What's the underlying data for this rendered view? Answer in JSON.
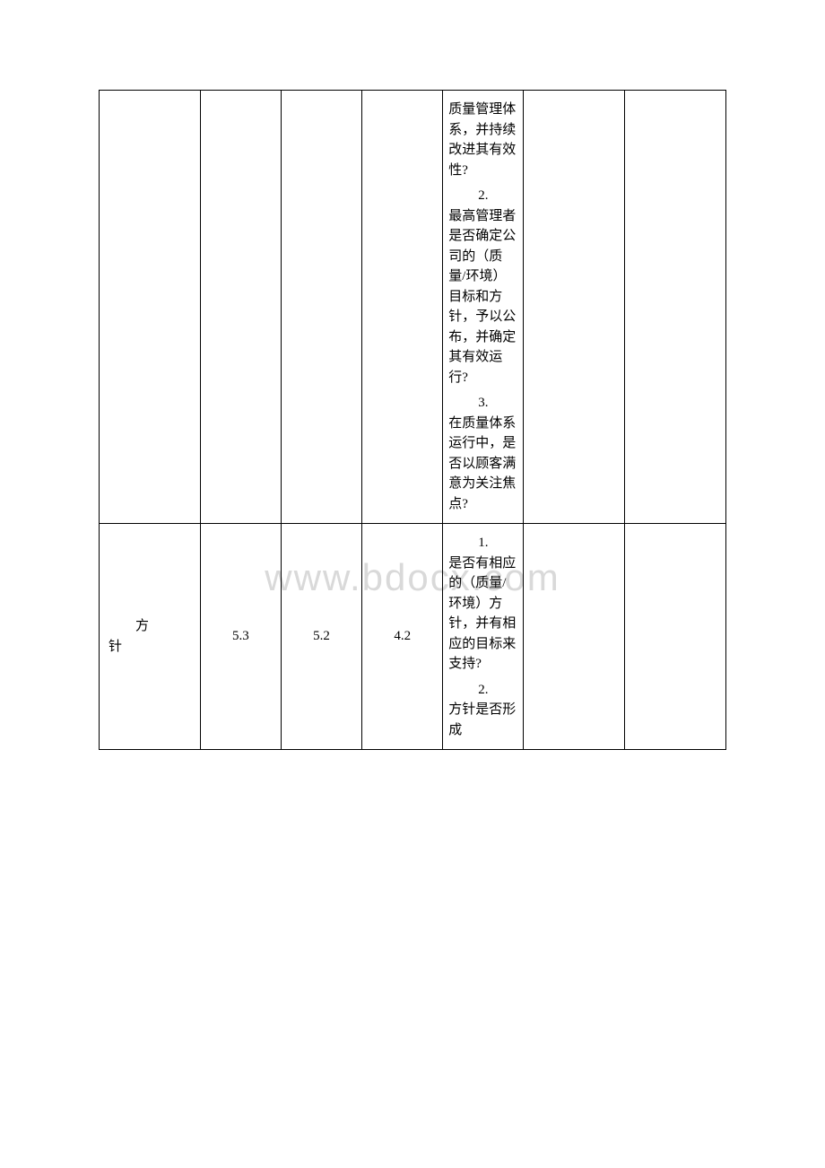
{
  "watermark": "www.bdocx.com",
  "rows": [
    {
      "label": "",
      "c1": "",
      "c2": "",
      "c3": "",
      "q1_num": "",
      "q1_txt": "质量管理体系，并持续改进其有效性?",
      "q2_num": "2.",
      "q2_txt": "最高管理者是否确定公司的（质量/环境）目标和方针，予以公布，并确定其有效运行?",
      "q3_num": "3.",
      "q3_txt": "在质量体系运行中，是否以顾客满意为关注焦点?",
      "c5": "",
      "c6": ""
    },
    {
      "label_line1": "方",
      "label_line2": "针",
      "c1": "5.3",
      "c2": "5.2",
      "c3": "4.2",
      "q1_num": "1.",
      "q1_txt": "是否有相应的（质量/环境）方针，并有相应的目标来支持?",
      "q2_num": "2.",
      "q2_txt": "方针是否形成",
      "c5": "",
      "c6": ""
    }
  ]
}
